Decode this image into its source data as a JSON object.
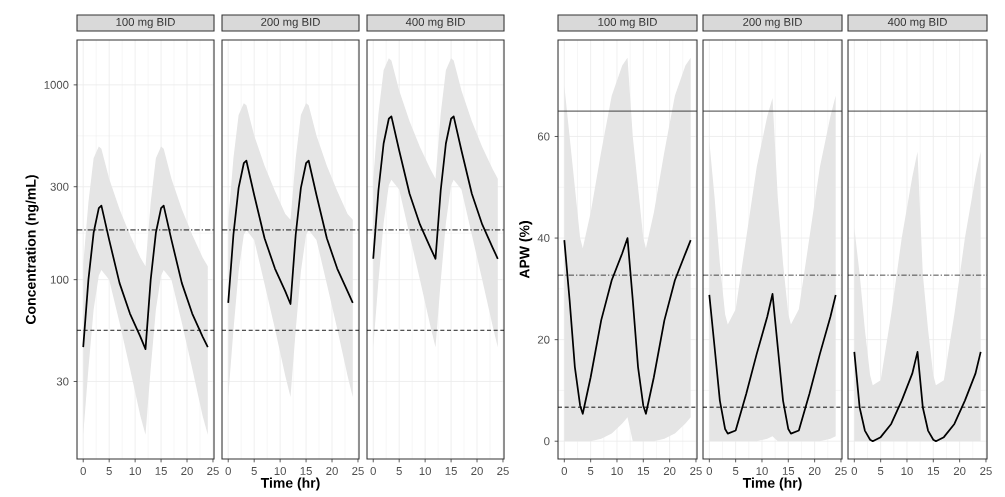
{
  "chart_data": [
    {
      "type": "line",
      "title": "100 mg BID",
      "ylabel": "Concentration (ng/mL)",
      "log": "y",
      "grid": true,
      "xlim": [
        -1.2,
        25.2
      ],
      "ylim": [
        12,
        1700
      ],
      "xticks": [
        0,
        5,
        10,
        15,
        20,
        25
      ],
      "yticks": [
        30,
        100,
        300,
        1000
      ],
      "x": [
        0,
        1,
        2,
        3,
        3.5,
        5,
        7,
        9,
        11,
        12,
        13,
        14,
        15,
        15.5,
        17,
        19,
        21,
        23,
        24
      ],
      "series": [
        {
          "color": "#000000",
          "values": [
            45,
            100,
            174,
            233,
            240,
            160,
            96,
            67,
            51,
            44,
            100,
            174,
            233,
            240,
            160,
            96,
            67,
            51,
            45
          ],
          "lower": [
            16,
            35,
            70,
            105,
            112,
            100,
            60,
            35,
            20,
            16,
            35,
            70,
            105,
            112,
            100,
            60,
            35,
            20,
            16
          ],
          "upper": [
            120,
            250,
            420,
            483,
            470,
            330,
            230,
            170,
            130,
            117,
            250,
            420,
            483,
            470,
            330,
            230,
            170,
            130,
            117
          ]
        }
      ],
      "ref_lines": [
        {
          "axis": "y",
          "value": 180,
          "line_style": "dashdot"
        },
        {
          "axis": "y",
          "value": 55,
          "line_style": "dashed"
        }
      ]
    },
    {
      "type": "line",
      "title": "200 mg BID",
      "xlabel": "Time (hr)",
      "log": "y",
      "grid": true,
      "tick_labels": "x",
      "xlim": [
        -1.2,
        25.2
      ],
      "ylim": [
        12,
        1700
      ],
      "xticks": [
        0,
        5,
        10,
        15,
        20,
        25
      ],
      "yticks": [
        30,
        100,
        300,
        1000
      ],
      "x": [
        0,
        1,
        2,
        3,
        3.5,
        5,
        7,
        9,
        11,
        12,
        13,
        14,
        15,
        15.5,
        17,
        19,
        21,
        23,
        24
      ],
      "series": [
        {
          "color": "#000000",
          "values": [
            76,
            170,
            296,
            396,
            408,
            272,
            163,
            114,
            87,
            75,
            170,
            296,
            396,
            408,
            272,
            163,
            114,
            87,
            76
          ],
          "lower": [
            25,
            55,
            110,
            170,
            180,
            160,
            95,
            56,
            32,
            25,
            55,
            110,
            170,
            180,
            160,
            95,
            56,
            32,
            25
          ],
          "upper": [
            200,
            420,
            700,
            805,
            785,
            550,
            385,
            285,
            217,
            203,
            420,
            700,
            805,
            785,
            550,
            385,
            285,
            217,
            203
          ]
        }
      ],
      "ref_lines": [
        {
          "axis": "y",
          "value": 180,
          "line_style": "dashdot"
        },
        {
          "axis": "y",
          "value": 55,
          "line_style": "dashed"
        }
      ]
    },
    {
      "type": "line",
      "title": "400 mg BID",
      "log": "y",
      "grid": true,
      "tick_labels": "x",
      "xlim": [
        -1.2,
        25.2
      ],
      "ylim": [
        12,
        1700
      ],
      "xticks": [
        0,
        5,
        10,
        15,
        20,
        25
      ],
      "yticks": [
        30,
        100,
        300,
        1000
      ],
      "x": [
        0,
        1,
        2,
        3,
        3.5,
        5,
        7,
        9,
        11,
        12,
        13,
        14,
        15,
        15.5,
        17,
        19,
        21,
        23,
        24
      ],
      "series": [
        {
          "color": "#000000",
          "values": [
            128,
            287,
            500,
            670,
            689,
            460,
            276,
            192,
            146,
            128,
            287,
            500,
            670,
            689,
            460,
            276,
            192,
            146,
            128
          ],
          "lower": [
            45,
            98,
            195,
            305,
            326,
            290,
            170,
            100,
            58,
            45,
            98,
            195,
            305,
            326,
            290,
            170,
            100,
            58,
            45
          ],
          "upper": [
            330,
            710,
            1190,
            1370,
            1335,
            935,
            650,
            480,
            370,
            330,
            710,
            1190,
            1370,
            1335,
            935,
            650,
            480,
            370,
            330
          ]
        }
      ],
      "ref_lines": [
        {
          "axis": "y",
          "value": 180,
          "line_style": "dashdot"
        },
        {
          "axis": "y",
          "value": 55,
          "line_style": "dashed"
        }
      ]
    },
    {
      "type": "line",
      "title": "100 mg BID",
      "ylabel": "APW (%)",
      "grid": true,
      "xlim": [
        -1.2,
        25.2
      ],
      "ylim": [
        -3.5,
        79
      ],
      "xticks": [
        0,
        5,
        10,
        15,
        20,
        25
      ],
      "yticks": [
        0,
        20,
        40,
        60
      ],
      "x": [
        0,
        1,
        2,
        3,
        3.5,
        5,
        7,
        9,
        11,
        12,
        13,
        14,
        15,
        15.5,
        17,
        19,
        21,
        23,
        24
      ],
      "series": [
        {
          "color": "#000000",
          "values": [
            39.6,
            27.8,
            14.6,
            7,
            5.4,
            12.6,
            23.8,
            31.7,
            37,
            40,
            27.8,
            14.6,
            7,
            5.4,
            12.6,
            23.8,
            31.7,
            37,
            39.6
          ],
          "lower": [
            0,
            0,
            0,
            0,
            0,
            0,
            0.5,
            1.5,
            3.5,
            4.7,
            0,
            0,
            0,
            0,
            0,
            0.5,
            1.5,
            3.5,
            4.7
          ],
          "upper": [
            70,
            60,
            50,
            40,
            38,
            45,
            57,
            68,
            74,
            75.5,
            60,
            50,
            40,
            38,
            45,
            57,
            68,
            74,
            75.5
          ]
        }
      ],
      "ref_lines": [
        {
          "axis": "y",
          "value": 65,
          "line_style": "solid"
        },
        {
          "axis": "y",
          "value": 32.7,
          "line_style": "dashdot"
        },
        {
          "axis": "y",
          "value": 6.7,
          "line_style": "dashed"
        }
      ]
    },
    {
      "type": "line",
      "title": "200 mg BID",
      "xlabel": "Time (hr)",
      "grid": true,
      "tick_labels": "x",
      "xlim": [
        -1.2,
        25.2
      ],
      "ylim": [
        -3.5,
        79
      ],
      "xticks": [
        0,
        5,
        10,
        15,
        20,
        25
      ],
      "yticks": [
        0,
        20,
        40,
        60
      ],
      "x": [
        0,
        1,
        2,
        3,
        3.5,
        5,
        7,
        9,
        11,
        12,
        13,
        14,
        15,
        15.5,
        17,
        19,
        21,
        23,
        24
      ],
      "series": [
        {
          "color": "#000000",
          "values": [
            28.8,
            18.5,
            8,
            2.4,
            1.5,
            2.1,
            9.3,
            17.2,
            24.5,
            29,
            18.5,
            8,
            2.4,
            1.5,
            2.1,
            9.3,
            17.2,
            24.5,
            28.8
          ],
          "lower": [
            0,
            0,
            0,
            0,
            0,
            0,
            0,
            0,
            0.5,
            1,
            0,
            0,
            0,
            0,
            0,
            0,
            0,
            0.5,
            1
          ],
          "upper": [
            59,
            48,
            35,
            25,
            23,
            26,
            40,
            54,
            64,
            67.6,
            48,
            35,
            25,
            23,
            26,
            40,
            54,
            64,
            68
          ]
        }
      ],
      "ref_lines": [
        {
          "axis": "y",
          "value": 65,
          "line_style": "solid"
        },
        {
          "axis": "y",
          "value": 32.7,
          "line_style": "dashdot"
        },
        {
          "axis": "y",
          "value": 6.7,
          "line_style": "dashed"
        }
      ]
    },
    {
      "type": "line",
      "title": "400 mg BID",
      "grid": true,
      "tick_labels": "x",
      "xlim": [
        -1.2,
        25.2
      ],
      "ylim": [
        -3.5,
        79
      ],
      "xticks": [
        0,
        5,
        10,
        15,
        20,
        25
      ],
      "yticks": [
        0,
        20,
        40,
        60
      ],
      "x": [
        0,
        1,
        2,
        3,
        3.5,
        5,
        7,
        9,
        11,
        12,
        13,
        14,
        15,
        15.5,
        17,
        19,
        21,
        23,
        24
      ],
      "series": [
        {
          "color": "#000000",
          "values": [
            17.6,
            6.7,
            2.1,
            0.3,
            0,
            0.8,
            3.4,
            8,
            13.3,
            17.6,
            6.7,
            2.1,
            0.3,
            0,
            0.8,
            3.4,
            8,
            13.3,
            17.6
          ],
          "lower": [
            0,
            0,
            0,
            0,
            0,
            0,
            0,
            0,
            0,
            0,
            0,
            0,
            0,
            0,
            0,
            0,
            0,
            0,
            0
          ],
          "upper": [
            42,
            33,
            22,
            13,
            11,
            12,
            25,
            40,
            52,
            57,
            33,
            22,
            13,
            11,
            12,
            25,
            40,
            52,
            57
          ]
        }
      ],
      "ref_lines": [
        {
          "axis": "y",
          "value": 65,
          "line_style": "solid"
        },
        {
          "axis": "y",
          "value": 32.7,
          "line_style": "dashdot"
        },
        {
          "axis": "y",
          "value": 6.7,
          "line_style": "dashed"
        }
      ]
    }
  ]
}
